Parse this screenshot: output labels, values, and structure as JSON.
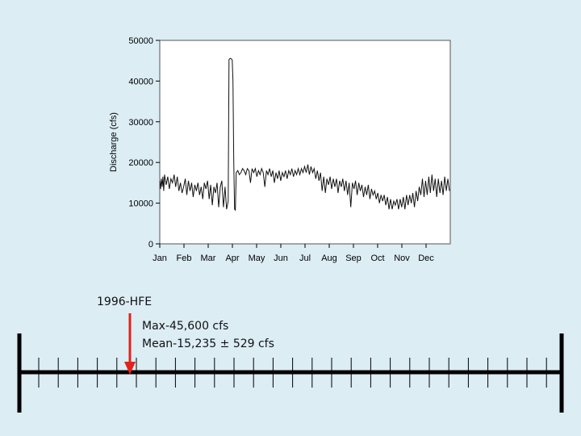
{
  "chart_data": {
    "type": "line",
    "title": "",
    "xlabel": "",
    "ylabel": "Discharge (cfs)",
    "ylim": [
      0,
      50000
    ],
    "yticks": [
      0,
      10000,
      20000,
      30000,
      40000,
      50000
    ],
    "xtick_labels": [
      "Jan",
      "Feb",
      "Mar",
      "Apr",
      "May",
      "Jun",
      "Jul",
      "Aug",
      "Sep",
      "Oct",
      "Nov",
      "Dec"
    ],
    "grid": false,
    "series": [
      {
        "values": [
          [
            0,
            15500
          ],
          [
            1,
            13500
          ],
          [
            2,
            16000
          ],
          [
            3,
            14000
          ],
          [
            4,
            16500
          ],
          [
            5,
            13000
          ],
          [
            6,
            17000
          ],
          [
            8,
            14500
          ],
          [
            10,
            16500
          ],
          [
            12,
            13500
          ],
          [
            14,
            16000
          ],
          [
            16,
            15000
          ],
          [
            18,
            17000
          ],
          [
            20,
            14000
          ],
          [
            22,
            16500
          ],
          [
            24,
            13000
          ],
          [
            26,
            15000
          ],
          [
            28,
            12500
          ],
          [
            30,
            14000
          ],
          [
            32,
            16000
          ],
          [
            34,
            12000
          ],
          [
            36,
            15500
          ],
          [
            38,
            13000
          ],
          [
            40,
            15000
          ],
          [
            42,
            11500
          ],
          [
            44,
            14500
          ],
          [
            46,
            13000
          ],
          [
            48,
            15000
          ],
          [
            50,
            12000
          ],
          [
            52,
            14000
          ],
          [
            54,
            11000
          ],
          [
            56,
            15000
          ],
          [
            58,
            13500
          ],
          [
            60,
            15500
          ],
          [
            62,
            11000
          ],
          [
            64,
            14500
          ],
          [
            66,
            9500
          ],
          [
            68,
            14000
          ],
          [
            70,
            12500
          ],
          [
            72,
            15000
          ],
          [
            74,
            9000
          ],
          [
            76,
            14000
          ],
          [
            78,
            15500
          ],
          [
            80,
            9000
          ],
          [
            82,
            14000
          ],
          [
            84,
            8500
          ],
          [
            86,
            10500
          ],
          [
            87,
            45300
          ],
          [
            88,
            45500
          ],
          [
            89,
            45600
          ],
          [
            90,
            45400
          ],
          [
            91,
            45200
          ],
          [
            92,
            40000
          ],
          [
            93,
            20000
          ],
          [
            94,
            8500
          ],
          [
            95,
            8300
          ],
          [
            96,
            17500
          ],
          [
            98,
            18000
          ],
          [
            100,
            17000
          ],
          [
            102,
            17500
          ],
          [
            104,
            18500
          ],
          [
            106,
            18000
          ],
          [
            108,
            17000
          ],
          [
            110,
            18500
          ],
          [
            112,
            18000
          ],
          [
            114,
            15000
          ],
          [
            116,
            18500
          ],
          [
            118,
            17500
          ],
          [
            120,
            18500
          ],
          [
            122,
            16500
          ],
          [
            124,
            18000
          ],
          [
            126,
            17000
          ],
          [
            128,
            18500
          ],
          [
            130,
            17500
          ],
          [
            132,
            14000
          ],
          [
            134,
            18000
          ],
          [
            136,
            17000
          ],
          [
            138,
            18500
          ],
          [
            140,
            16500
          ],
          [
            142,
            18000
          ],
          [
            144,
            15000
          ],
          [
            146,
            17500
          ],
          [
            148,
            16000
          ],
          [
            150,
            18000
          ],
          [
            152,
            15500
          ],
          [
            154,
            17500
          ],
          [
            156,
            16500
          ],
          [
            158,
            18000
          ],
          [
            160,
            16000
          ],
          [
            162,
            18000
          ],
          [
            164,
            17000
          ],
          [
            166,
            18500
          ],
          [
            168,
            16500
          ],
          [
            170,
            18000
          ],
          [
            172,
            17000
          ],
          [
            174,
            18500
          ],
          [
            176,
            17000
          ],
          [
            178,
            18500
          ],
          [
            180,
            17500
          ],
          [
            182,
            19000
          ],
          [
            184,
            17500
          ],
          [
            186,
            19500
          ],
          [
            188,
            17000
          ],
          [
            190,
            19000
          ],
          [
            192,
            17500
          ],
          [
            194,
            18500
          ],
          [
            196,
            16000
          ],
          [
            198,
            18000
          ],
          [
            200,
            15500
          ],
          [
            202,
            17500
          ],
          [
            204,
            13000
          ],
          [
            206,
            16500
          ],
          [
            208,
            12500
          ],
          [
            210,
            16000
          ],
          [
            212,
            14500
          ],
          [
            214,
            16500
          ],
          [
            216,
            13500
          ],
          [
            218,
            16000
          ],
          [
            220,
            14000
          ],
          [
            222,
            16000
          ],
          [
            224,
            12500
          ],
          [
            226,
            15500
          ],
          [
            228,
            14000
          ],
          [
            230,
            16000
          ],
          [
            232,
            13000
          ],
          [
            234,
            15500
          ],
          [
            236,
            12000
          ],
          [
            238,
            15000
          ],
          [
            240,
            9000
          ],
          [
            242,
            15000
          ],
          [
            244,
            13500
          ],
          [
            246,
            15500
          ],
          [
            248,
            12000
          ],
          [
            250,
            15000
          ],
          [
            252,
            13000
          ],
          [
            254,
            14500
          ],
          [
            256,
            11500
          ],
          [
            258,
            14000
          ],
          [
            260,
            12000
          ],
          [
            262,
            14500
          ],
          [
            264,
            11000
          ],
          [
            266,
            13500
          ],
          [
            268,
            12000
          ],
          [
            270,
            13000
          ],
          [
            272,
            11000
          ],
          [
            274,
            12500
          ],
          [
            276,
            10000
          ],
          [
            278,
            12000
          ],
          [
            280,
            10500
          ],
          [
            282,
            12000
          ],
          [
            284,
            9500
          ],
          [
            286,
            11500
          ],
          [
            288,
            8500
          ],
          [
            290,
            11000
          ],
          [
            292,
            8500
          ],
          [
            294,
            10500
          ],
          [
            296,
            9500
          ],
          [
            298,
            11000
          ],
          [
            300,
            8500
          ],
          [
            302,
            11000
          ],
          [
            304,
            9000
          ],
          [
            306,
            11500
          ],
          [
            308,
            8500
          ],
          [
            310,
            12000
          ],
          [
            312,
            9500
          ],
          [
            314,
            12000
          ],
          [
            316,
            10000
          ],
          [
            318,
            12500
          ],
          [
            320,
            9000
          ],
          [
            322,
            13000
          ],
          [
            324,
            10500
          ],
          [
            326,
            14000
          ],
          [
            328,
            12000
          ],
          [
            330,
            16000
          ],
          [
            332,
            11500
          ],
          [
            334,
            15500
          ],
          [
            336,
            12000
          ],
          [
            338,
            16500
          ],
          [
            340,
            12500
          ],
          [
            342,
            17000
          ],
          [
            344,
            13000
          ],
          [
            346,
            16000
          ],
          [
            348,
            11500
          ],
          [
            350,
            16000
          ],
          [
            352,
            12500
          ],
          [
            354,
            15500
          ],
          [
            356,
            12000
          ],
          [
            358,
            16500
          ],
          [
            360,
            13000
          ],
          [
            362,
            16000
          ],
          [
            364,
            13000
          ]
        ]
      }
    ]
  },
  "annotations": {
    "event": "1996-HFE",
    "max": "Max-45,600 cfs",
    "mean": "Mean-15,235 ± 529 cfs"
  },
  "colors": {
    "background": "#dcedf4",
    "plot_background": "#ffffff",
    "line": "#111111",
    "arrow": "#e2231a",
    "timeline": "#000000"
  }
}
